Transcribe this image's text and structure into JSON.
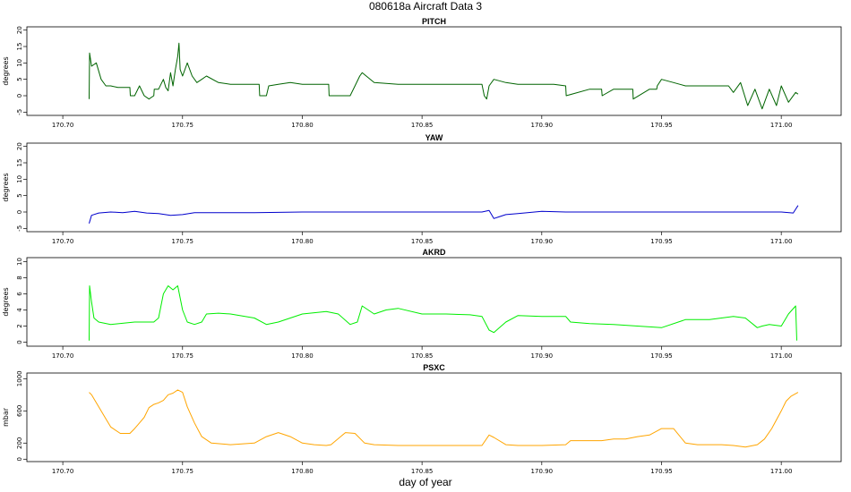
{
  "figure": {
    "title": "080618a   Aircraft Data 3",
    "xlabel": "day of year"
  },
  "chart_data": [
    {
      "type": "line",
      "title": "PITCH",
      "ylabel": "degrees",
      "color": "#006400",
      "xlim": [
        170.685,
        171.025
      ],
      "ylim": [
        -6,
        21
      ],
      "xticks": [
        "170.70",
        "170.75",
        "170.80",
        "170.85",
        "170.90",
        "170.95",
        "171.00"
      ],
      "yticks": [
        "-5",
        "0",
        "5",
        "10",
        "15",
        "20"
      ],
      "x": [
        170.711,
        170.7112,
        170.712,
        170.714,
        170.716,
        170.718,
        170.72,
        170.723,
        170.726,
        170.728,
        170.7282,
        170.73,
        170.732,
        170.734,
        170.736,
        170.738,
        170.7382,
        170.74,
        170.742,
        170.743,
        170.744,
        170.745,
        170.746,
        170.747,
        170.748,
        170.7485,
        170.749,
        170.75,
        170.752,
        170.754,
        170.756,
        170.758,
        170.76,
        170.765,
        170.77,
        170.775,
        170.78,
        170.782,
        170.7822,
        170.785,
        170.786,
        170.79,
        170.795,
        170.8,
        170.805,
        170.81,
        170.811,
        170.8112,
        170.815,
        170.82,
        170.822,
        170.824,
        170.825,
        170.83,
        170.84,
        170.85,
        170.86,
        170.87,
        170.875,
        170.876,
        170.877,
        170.878,
        170.88,
        170.885,
        170.89,
        170.895,
        170.9,
        170.905,
        170.91,
        170.9102,
        170.92,
        170.925,
        170.9252,
        170.93,
        170.935,
        170.938,
        170.9382,
        170.945,
        170.948,
        170.9482,
        170.95,
        170.955,
        170.96,
        170.965,
        170.97,
        170.975,
        170.978,
        170.98,
        170.983,
        170.986,
        170.989,
        170.992,
        170.995,
        170.998,
        171.0,
        171.003,
        171.006,
        171.007
      ],
      "y": [
        -1,
        13,
        9,
        10,
        5,
        3,
        3,
        2.5,
        2.5,
        2.5,
        0,
        0,
        3,
        0,
        -1,
        0,
        2,
        2,
        5,
        2.5,
        1.5,
        7,
        3,
        8,
        12,
        16,
        8,
        6,
        10,
        6,
        4,
        5,
        6,
        4,
        3.5,
        3.5,
        3.5,
        3.5,
        0,
        0,
        3,
        3.5,
        4,
        3.5,
        3.5,
        3.5,
        3.5,
        0,
        0,
        0,
        3,
        6,
        7,
        4,
        3.5,
        3.5,
        3.5,
        3.5,
        3.5,
        0,
        -1,
        3,
        5,
        4,
        3.5,
        3.5,
        3.5,
        3.5,
        3,
        0,
        2,
        2,
        0,
        2,
        2,
        2,
        -1,
        2,
        2,
        3,
        5,
        4,
        3,
        3,
        3,
        3,
        3,
        1,
        4,
        -3,
        2,
        -4,
        2,
        -3,
        3,
        -2,
        1,
        0.5
      ]
    },
    {
      "type": "line",
      "title": "YAW",
      "ylabel": "degrees",
      "color": "#0000cc",
      "xlim": [
        170.685,
        171.025
      ],
      "ylim": [
        -6,
        21
      ],
      "xticks": [
        "170.70",
        "170.75",
        "170.80",
        "170.85",
        "170.90",
        "170.95",
        "171.00"
      ],
      "yticks": [
        "-5",
        "0",
        "5",
        "10",
        "15",
        "20"
      ],
      "x": [
        170.711,
        170.712,
        170.715,
        170.72,
        170.725,
        170.73,
        170.735,
        170.74,
        170.745,
        170.75,
        170.755,
        170.76,
        170.78,
        170.8,
        170.82,
        170.84,
        170.86,
        170.875,
        170.878,
        170.88,
        170.882,
        170.885,
        170.89,
        170.9,
        170.91,
        170.93,
        170.95,
        170.97,
        170.99,
        171.0,
        171.005,
        171.007
      ],
      "y": [
        -3.5,
        -1,
        -0.3,
        0,
        -0.2,
        0.2,
        -0.3,
        -0.5,
        -1,
        -0.8,
        -0.2,
        -0.2,
        -0.2,
        0,
        0,
        0,
        0,
        0,
        0.5,
        -2,
        -1.5,
        -0.8,
        -0.5,
        0.2,
        0,
        0,
        0,
        0,
        0,
        0,
        -0.3,
        2
      ]
    },
    {
      "type": "line",
      "title": "AKRD",
      "ylabel": "degrees",
      "color": "#00ee00",
      "xlim": [
        170.685,
        171.025
      ],
      "ylim": [
        -0.5,
        10.5
      ],
      "xticks": [
        "170.70",
        "170.75",
        "170.80",
        "170.85",
        "170.90",
        "170.95",
        "171.00"
      ],
      "yticks": [
        "0",
        "2",
        "4",
        "6",
        "8",
        "10"
      ],
      "x": [
        170.711,
        170.7112,
        170.712,
        170.713,
        170.715,
        170.72,
        170.73,
        170.738,
        170.74,
        170.742,
        170.744,
        170.746,
        170.748,
        170.75,
        170.752,
        170.755,
        170.758,
        170.76,
        170.765,
        170.77,
        170.78,
        170.785,
        170.79,
        170.8,
        170.81,
        170.815,
        170.82,
        170.823,
        170.825,
        170.83,
        170.835,
        170.84,
        170.85,
        170.86,
        170.87,
        170.875,
        170.878,
        170.88,
        170.885,
        170.89,
        170.9,
        170.91,
        170.912,
        170.92,
        170.93,
        170.94,
        170.95,
        170.96,
        170.97,
        170.98,
        170.985,
        170.99,
        170.992,
        170.995,
        171.0,
        171.003,
        171.006,
        171.0065
      ],
      "y": [
        0.2,
        7,
        5,
        3,
        2.5,
        2.2,
        2.5,
        2.5,
        3,
        6,
        7,
        6.5,
        7,
        4,
        2.5,
        2.2,
        2.5,
        3.5,
        3.6,
        3.5,
        3,
        2.2,
        2.5,
        3.5,
        3.8,
        3.5,
        2.2,
        2.5,
        4.5,
        3.5,
        4,
        4.2,
        3.5,
        3.5,
        3.4,
        3.2,
        1.5,
        1.2,
        2.5,
        3.3,
        3.2,
        3.2,
        2.5,
        2.3,
        2.2,
        2,
        1.8,
        2.8,
        2.8,
        3.2,
        3,
        1.8,
        2,
        2.2,
        2,
        3.5,
        4.5,
        0.2
      ]
    },
    {
      "type": "line",
      "title": "PSXC",
      "ylabel": "mbar",
      "color": "#ffa500",
      "xlim": [
        170.685,
        171.025
      ],
      "ylim": [
        -30,
        1070
      ],
      "xticks": [
        "170.70",
        "170.75",
        "170.80",
        "170.85",
        "170.90",
        "170.95",
        "171.00"
      ],
      "yticks": [
        "0",
        "200",
        "600",
        "1000"
      ],
      "x": [
        170.711,
        170.712,
        170.715,
        170.718,
        170.72,
        170.724,
        170.726,
        170.728,
        170.73,
        170.732,
        170.734,
        170.736,
        170.738,
        170.74,
        170.742,
        170.744,
        170.746,
        170.748,
        170.75,
        170.752,
        170.755,
        170.758,
        170.762,
        170.77,
        170.78,
        170.785,
        170.79,
        170.795,
        170.8,
        170.805,
        170.81,
        170.812,
        170.818,
        170.822,
        170.826,
        170.83,
        170.84,
        170.86,
        170.87,
        170.875,
        170.878,
        170.88,
        170.885,
        170.89,
        170.9,
        170.91,
        170.912,
        170.92,
        170.925,
        170.93,
        170.935,
        170.94,
        170.945,
        170.95,
        170.955,
        170.96,
        170.965,
        170.97,
        170.975,
        170.98,
        170.985,
        170.99,
        170.993,
        170.996,
        171.0,
        171.002,
        171.004,
        171.007
      ],
      "y": [
        830,
        800,
        650,
        500,
        400,
        320,
        320,
        320,
        380,
        450,
        520,
        640,
        680,
        700,
        730,
        800,
        820,
        860,
        830,
        650,
        450,
        280,
        200,
        180,
        200,
        280,
        330,
        280,
        200,
        180,
        170,
        180,
        330,
        320,
        200,
        180,
        170,
        170,
        170,
        170,
        300,
        270,
        180,
        170,
        170,
        180,
        230,
        230,
        230,
        250,
        250,
        280,
        300,
        380,
        380,
        200,
        180,
        180,
        180,
        170,
        150,
        180,
        250,
        380,
        600,
        720,
        780,
        830
      ]
    }
  ]
}
